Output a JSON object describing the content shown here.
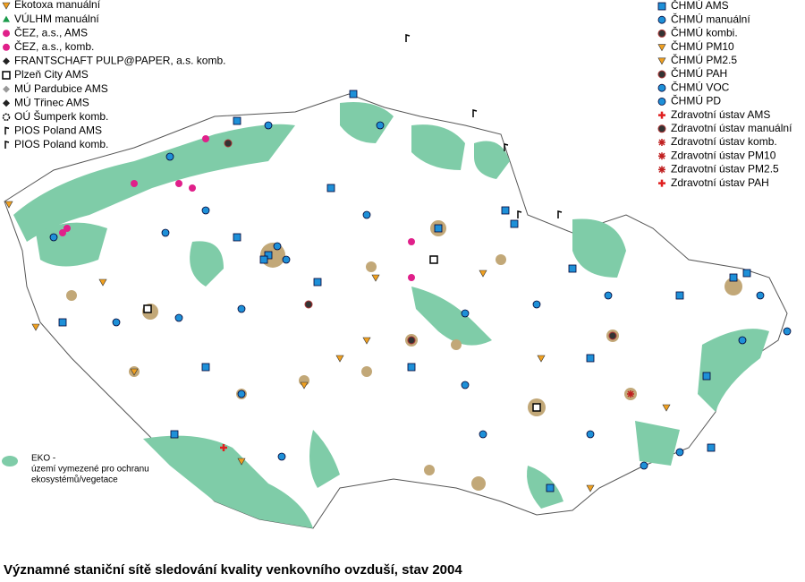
{
  "legend_left": [
    "Ekotoxa manuální",
    "VÚLHM manuální",
    "ČEZ, a.s., AMS",
    "ČEZ, a.s., komb.",
    "FRANTSCHAFT PULP@PAPER, a.s. komb.",
    "Plzeň City AMS",
    "MÚ Pardubice AMS",
    "MÚ Třinec AMS",
    "OÚ Šumperk komb.",
    "PIOS Poland AMS",
    "PIOS Poland komb."
  ],
  "legend_right": [
    "ČHMÚ AMS",
    "ČHMÚ manuální",
    "ČHMÚ kombi.",
    "ČHMÚ PM10",
    "ČHMÚ PM2.5",
    "ČHMÚ PAH",
    "ČHMÚ VOC",
    "ČHMÚ PD",
    "Zdravotní ústav AMS",
    "Zdravotní ústav manuální",
    "Zdravotní ústav komb.",
    "Zdravotní ústav PM10",
    "Zdravotní ústav PM2.5",
    "Zdravotní ústav PAH"
  ],
  "eko_note": [
    "EKO -",
    "území vymezené pro ochranu",
    "ekosystémů/vegetace"
  ],
  "caption": "Významné staniční sítě sledování kvality venkovního ovzduší, stav 2004"
}
